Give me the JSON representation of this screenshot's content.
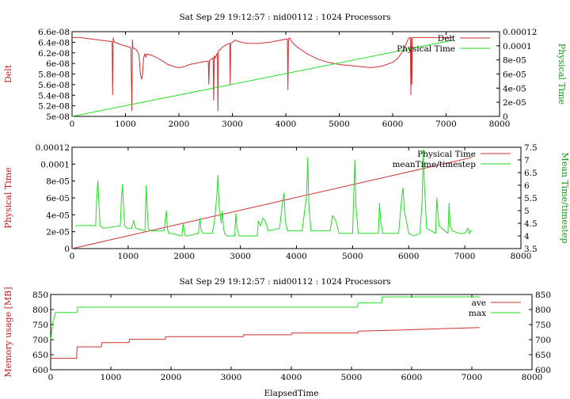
{
  "title_top": "Sat Sep 29 19:12:57 : nid00112 : 1024 Processors",
  "title_bottom": "Sat Sep 29 19:12:57 : nid00112 : 1024 Processors",
  "colors": {
    "series_a": "#d03030",
    "series_b": "#22dd22"
  },
  "chart_data": [
    {
      "type": "line",
      "xlim": [
        0,
        8000
      ],
      "xticks": [
        "0",
        "1000",
        "2000",
        "3000",
        "4000",
        "5000",
        "6000",
        "7000",
        "8000"
      ],
      "ylabel_left": "Delt",
      "ylabel_right": "Physical Time",
      "ylim_left": [
        5e-08,
        6.6e-08
      ],
      "yticks_left": [
        "5e-08",
        "5.2e-08",
        "5.4e-08",
        "5.6e-08",
        "5.8e-08",
        "6e-08",
        "6.2e-08",
        "6.4e-08",
        "6.6e-08"
      ],
      "ylim_right": [
        0,
        0.00012
      ],
      "yticks_right": [
        "0",
        "2e-05",
        "4e-05",
        "6e-05",
        "8e-05",
        "0.0001",
        "0.00012"
      ],
      "legend": "top-right",
      "series": [
        {
          "name": "Delt",
          "axis": "left",
          "color": "red",
          "x": [
            0,
            150,
            300,
            450,
            600,
            750,
            760,
            770,
            780,
            800,
            900,
            1000,
            1100,
            1120,
            1130,
            1140,
            1160,
            1200,
            1250,
            1280,
            1300,
            1320,
            1340,
            1360,
            1380,
            1400,
            1500,
            1600,
            1700,
            1800,
            1900,
            2000,
            2100,
            2200,
            2300,
            2400,
            2500,
            2550,
            2560,
            2570,
            2600,
            2640,
            2650,
            2660,
            2680,
            2700,
            2720,
            2730,
            2740,
            2780,
            2800,
            2900,
            2950,
            2960,
            2970,
            3000,
            3050,
            3100,
            3200,
            3300,
            3400,
            3500,
            3600,
            3700,
            3800,
            3900,
            4000,
            4030,
            4040,
            4050,
            4080,
            4100,
            4200,
            4400,
            4600,
            4800,
            5000,
            5200,
            5400,
            5600,
            5800,
            6000,
            6100,
            6200,
            6300,
            6330,
            6340,
            6350,
            6360,
            6370,
            6400,
            6500,
            6600,
            6700,
            6800,
            6900,
            7000,
            7100,
            7130
          ],
          "y": [
            6.49e-08,
            6.49e-08,
            6.47e-08,
            6.45e-08,
            6.43e-08,
            6.41e-08,
            5.4e-08,
            6.49e-08,
            6.42e-08,
            6.4e-08,
            6.36e-08,
            6.33e-08,
            6.3e-08,
            5.1e-08,
            6.45e-08,
            6.3e-08,
            6.28e-08,
            6.26e-08,
            6.18e-08,
            5.8e-08,
            5.7e-08,
            5.8e-08,
            6.1e-08,
            6.18e-08,
            6.12e-08,
            6.18e-08,
            6.15e-08,
            6.1e-08,
            6.04e-08,
            5.98e-08,
            5.94e-08,
            5.92e-08,
            5.94e-08,
            5.98e-08,
            6e-08,
            6.02e-08,
            6.04e-08,
            6.04e-08,
            5.6e-08,
            6.05e-08,
            6.08e-08,
            6.1e-08,
            5.3e-08,
            6.15e-08,
            6.1e-08,
            6.15e-08,
            6.2e-08,
            5.1e-08,
            6.25e-08,
            6.26e-08,
            6.3e-08,
            6.36e-08,
            6.38e-08,
            5.6e-08,
            6.38e-08,
            6.4e-08,
            6.44e-08,
            6.42e-08,
            6.39e-08,
            6.38e-08,
            6.38e-08,
            6.38e-08,
            6.39e-08,
            6.4e-08,
            6.42e-08,
            6.44e-08,
            6.46e-08,
            6.46e-08,
            5.5e-08,
            6.47e-08,
            6.48e-08,
            6.42e-08,
            6.32e-08,
            6.18e-08,
            6.08e-08,
            6.02e-08,
            5.98e-08,
            5.96e-08,
            5.94e-08,
            5.92e-08,
            5.95e-08,
            6.02e-08,
            6.1e-08,
            6.25e-08,
            6.48e-08,
            6.49e-08,
            5.4e-08,
            6.49e-08,
            5.6e-08,
            6.49e-08,
            6.49e-08,
            6.49e-08,
            6.49e-08,
            6.49e-08,
            6.49e-08,
            6.49e-08,
            6.49e-08,
            6.49e-08,
            6.49e-08
          ]
        },
        {
          "name": "Physical Time",
          "axis": "right",
          "color": "green",
          "x": [
            0,
            7130
          ],
          "y": [
            0,
            0.000108
          ]
        }
      ]
    },
    {
      "type": "line",
      "xlim": [
        0,
        8000
      ],
      "xticks": [
        "0",
        "1000",
        "2000",
        "3000",
        "4000",
        "5000",
        "6000",
        "7000",
        "8000"
      ],
      "ylabel_left": "Physical Time",
      "ylabel_right": "Mean Time/timestep",
      "ylim_left": [
        0,
        0.00012
      ],
      "yticks_left": [
        "0",
        "2e-05",
        "4e-05",
        "6e-05",
        "8e-05",
        "0.0001",
        "0.00012"
      ],
      "ylim_right": [
        3.5,
        7.5
      ],
      "yticks_right": [
        "3.5",
        "4",
        "4.5",
        "5",
        "5.5",
        "6",
        "6.5",
        "7",
        "7.5"
      ],
      "legend": "top-right",
      "series": [
        {
          "name": "Physical Time",
          "axis": "left",
          "color": "red",
          "x": [
            0,
            7130
          ],
          "y": [
            0,
            0.000108
          ]
        },
        {
          "name": "meanTime/timestep",
          "axis": "right",
          "color": "green",
          "x": [
            60,
            300,
            420,
            440,
            460,
            480,
            500,
            560,
            860,
            880,
            900,
            920,
            940,
            980,
            1060,
            1100,
            1120,
            1140,
            1300,
            1320,
            1340,
            1360,
            1400,
            1640,
            1680,
            1700,
            1720,
            1760,
            1960,
            1980,
            2000,
            2020,
            2060,
            2250,
            2280,
            2300,
            2340,
            2500,
            2540,
            2580,
            2600,
            2620,
            2660,
            2680,
            2700,
            2720,
            2760,
            2900,
            2920,
            2940,
            2980,
            3300,
            3320,
            3360,
            3400,
            3440,
            3500,
            3700,
            3760,
            3780,
            3800,
            3840,
            4100,
            4180,
            4200,
            4220,
            4260,
            4600,
            4640,
            4700,
            4760,
            5000,
            5020,
            5040,
            5060,
            5100,
            5460,
            5480,
            5500,
            5540,
            5820,
            5880,
            5900,
            5920,
            5960,
            6000,
            6100,
            6200,
            6240,
            6260,
            6280,
            6320,
            6480,
            6500,
            6540,
            6700,
            6720,
            6740,
            6780,
            6900,
            7000,
            7060,
            7080,
            7100,
            7130
          ],
          "y": [
            4.4,
            4.42,
            4.4,
            5.5,
            6.2,
            5.2,
            4.4,
            4.3,
            4.4,
            5.5,
            6.05,
            5.0,
            4.4,
            4.3,
            4.3,
            4.6,
            4.4,
            4.3,
            4.2,
            6.0,
            5.0,
            4.3,
            4.2,
            4.2,
            5.0,
            4.3,
            4.1,
            4.1,
            4.0,
            4.5,
            4.2,
            4.0,
            4.0,
            4.1,
            4.7,
            4.2,
            4.1,
            4.1,
            4.6,
            5.6,
            6.4,
            5.2,
            4.5,
            5.0,
            4.3,
            4.1,
            4.0,
            4.0,
            4.9,
            4.3,
            4.0,
            4.0,
            4.6,
            4.4,
            4.7,
            4.6,
            4.2,
            4.3,
            5.5,
            5.7,
            4.6,
            4.2,
            4.2,
            5.6,
            7.1,
            5.2,
            4.2,
            4.2,
            4.8,
            4.6,
            4.1,
            4.1,
            5.5,
            7.0,
            5.2,
            4.1,
            4.1,
            5.3,
            4.6,
            4.1,
            4.1,
            5.6,
            5.9,
            5.0,
            4.6,
            4.1,
            4.0,
            4.1,
            5.4,
            7.4,
            6.0,
            4.3,
            4.1,
            5.5,
            4.4,
            4.1,
            5.3,
            4.4,
            4.2,
            4.1,
            4.1,
            4.3,
            4.1,
            4.2,
            4.2
          ]
        }
      ]
    },
    {
      "type": "line",
      "xlim": [
        0,
        8000
      ],
      "xticks": [
        "0",
        "1000",
        "2000",
        "3000",
        "4000",
        "5000",
        "6000",
        "7000",
        "8000"
      ],
      "xlabel": "ElapsedTime",
      "ylabel_left": "Memory usage [MB]",
      "ylim_left": [
        600,
        850
      ],
      "yticks_left": [
        "600",
        "650",
        "700",
        "750",
        "800",
        "850"
      ],
      "ylim_right": [
        600,
        850
      ],
      "yticks_right": [
        "600",
        "650",
        "700",
        "750",
        "800",
        "850"
      ],
      "legend": "top-right",
      "series": [
        {
          "name": "ave",
          "axis": "left",
          "color": "red",
          "x": [
            0,
            430,
            440,
            840,
            850,
            1300,
            1310,
            1900,
            1910,
            3200,
            3210,
            4000,
            4010,
            5100,
            5110,
            7130
          ],
          "y": [
            638,
            638,
            676,
            676,
            690,
            690,
            701,
            701,
            710,
            710,
            716,
            716,
            722,
            722,
            728,
            740
          ]
        },
        {
          "name": "max",
          "axis": "left",
          "color": "green",
          "x": [
            0,
            40,
            80,
            150,
            440,
            450,
            5100,
            5110,
            5500,
            5510,
            7130
          ],
          "y": [
            700,
            760,
            790,
            790,
            790,
            808,
            808,
            822,
            822,
            842,
            842
          ]
        }
      ]
    }
  ]
}
